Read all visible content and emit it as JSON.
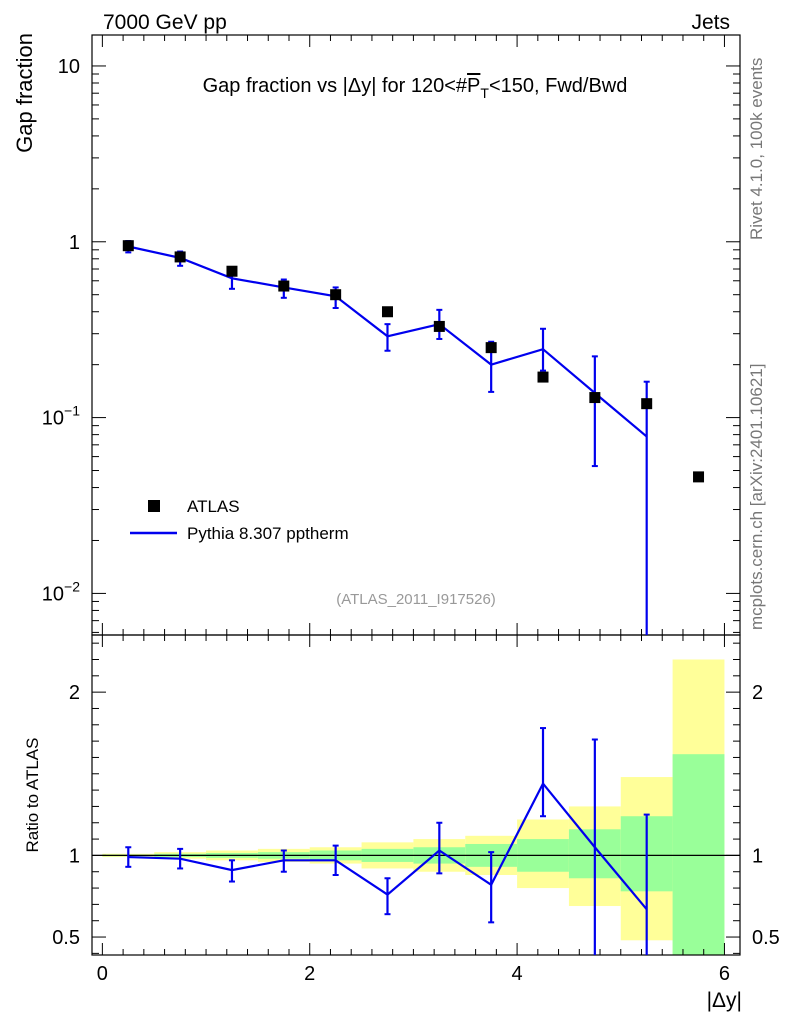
{
  "header": {
    "left": "7000 GeV pp",
    "right": "Jets"
  },
  "side": {
    "rivet": "Rivet 4.1.0,  100k events",
    "mcplots": "mcplots.cern.ch [arXiv:2401.10621]"
  },
  "colors": {
    "mc": "#0000ee",
    "band_outer": "#ffff99",
    "band_inner": "#99ff99",
    "data": "#000000",
    "watermark": "#999999"
  },
  "chart_data": {
    "type": "scatter",
    "title": "Gap fraction vs |Δy| for 120<#P_T<150, Fwd/Bwd",
    "title_parts": {
      "pre": "Gap fraction vs |Δy| for 120<#",
      "p": "P",
      "sub": "T",
      "post": "<150, Fwd/Bwd"
    },
    "analysis_tag": "(ATLAS_2011_I917526)",
    "xlabel": "|Δy|",
    "ylabel": "Gap fraction",
    "ratio_ylabel": "Ratio to ATLAS",
    "xlim": [
      -0.1,
      6.15
    ],
    "ylim": [
      0.0058,
      15
    ],
    "yscale": "log",
    "ratio_ylim": [
      0.39,
      2.35
    ],
    "legend": {
      "position": "bottom-left",
      "entries": [
        "ATLAS",
        "Pythia 8.307 pptherm"
      ]
    },
    "x_ticks": [
      {
        "v": 0,
        "label": "0"
      },
      {
        "v": 2,
        "label": "2"
      },
      {
        "v": 4,
        "label": "4"
      },
      {
        "v": 6,
        "label": "6"
      }
    ],
    "y_ticks": [
      {
        "v": 10,
        "base": "10",
        "exp": ""
      },
      {
        "v": 1,
        "base": "1",
        "exp": ""
      },
      {
        "v": 0.1,
        "base": "10",
        "exp": "−1"
      },
      {
        "v": 0.01,
        "base": "10",
        "exp": "−2"
      }
    ],
    "ratio_ticks": [
      {
        "v": 2,
        "label": "2"
      },
      {
        "v": 1,
        "label": "1"
      },
      {
        "v": 0.5,
        "label": "0.5"
      }
    ],
    "bin_edges": [
      0,
      0.5,
      1,
      1.5,
      2,
      2.5,
      3,
      3.5,
      4,
      4.5,
      5,
      5.5,
      6
    ],
    "series": [
      {
        "name": "ATLAS",
        "x": [
          0.25,
          0.75,
          1.25,
          1.75,
          2.25,
          2.75,
          3.25,
          3.75,
          4.25,
          4.75,
          5.25,
          5.75
        ],
        "y": [
          0.95,
          0.82,
          0.68,
          0.56,
          0.5,
          0.4,
          0.33,
          0.25,
          0.17,
          0.13,
          0.12,
          0.046
        ]
      },
      {
        "name": "Pythia 8.307 pptherm",
        "x": [
          0.25,
          0.75,
          1.25,
          1.75,
          2.25,
          2.75,
          3.25,
          3.75,
          4.25,
          4.75,
          5.25
        ],
        "y": [
          0.94,
          0.81,
          0.62,
          0.55,
          0.49,
          0.29,
          0.34,
          0.2,
          0.245,
          0.138,
          0.078
        ],
        "err_lo": [
          0.07,
          0.08,
          0.08,
          0.07,
          0.07,
          0.05,
          0.06,
          0.06,
          0.06,
          0.085,
          0.078
        ],
        "err_hi": [
          0.07,
          0.07,
          0.08,
          0.06,
          0.06,
          0.05,
          0.07,
          0.07,
          0.075,
          0.085,
          0.082
        ]
      }
    ],
    "ratio": {
      "values": [
        0.99,
        0.98,
        0.91,
        0.97,
        0.97,
        0.76,
        1.03,
        0.82,
        1.44,
        1.05,
        0.67
      ],
      "err_lo": [
        0.06,
        0.06,
        0.07,
        0.07,
        0.09,
        0.12,
        0.14,
        0.23,
        0.2,
        0.68,
        0.4
      ],
      "err_hi": [
        0.06,
        0.06,
        0.06,
        0.06,
        0.09,
        0.1,
        0.17,
        0.2,
        0.34,
        0.66,
        0.58
      ],
      "band_outer_lo": [
        0.99,
        0.98,
        0.97,
        0.96,
        0.95,
        0.92,
        0.9,
        0.88,
        0.8,
        0.69,
        0.48,
        0.39
      ],
      "band_outer_hi": [
        1.01,
        1.02,
        1.03,
        1.04,
        1.05,
        1.08,
        1.1,
        1.12,
        1.22,
        1.3,
        1.48,
        2.2
      ],
      "band_inner_lo": [
        0.995,
        0.99,
        0.985,
        0.98,
        0.97,
        0.96,
        0.95,
        0.93,
        0.9,
        0.86,
        0.78,
        0.39
      ],
      "band_inner_hi": [
        1.005,
        1.01,
        1.015,
        1.02,
        1.03,
        1.04,
        1.05,
        1.07,
        1.1,
        1.16,
        1.24,
        1.62
      ]
    }
  }
}
